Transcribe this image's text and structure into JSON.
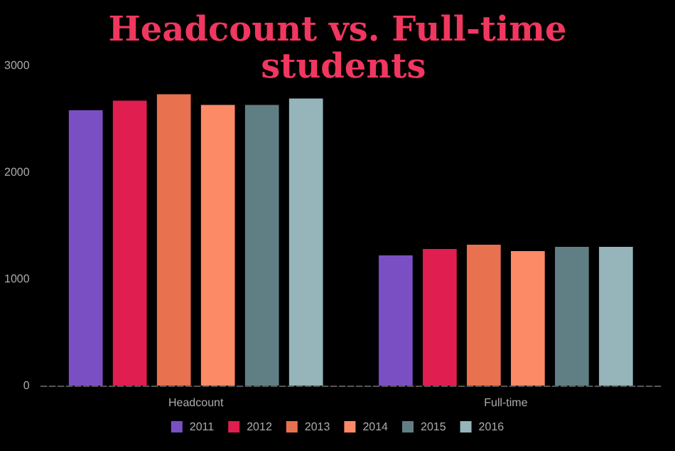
{
  "chart_data": {
    "type": "bar",
    "title": "Headcount vs. Full-time students",
    "categories": [
      "Headcount",
      "Full-time"
    ],
    "series": [
      {
        "name": "2011",
        "color": "#7b4fc4",
        "values": [
          2580,
          1220
        ]
      },
      {
        "name": "2012",
        "color": "#e01e4f",
        "values": [
          2670,
          1280
        ]
      },
      {
        "name": "2013",
        "color": "#e8714f",
        "values": [
          2730,
          1320
        ]
      },
      {
        "name": "2014",
        "color": "#fd8a66",
        "values": [
          2630,
          1260
        ]
      },
      {
        "name": "2015",
        "color": "#607f84",
        "values": [
          2630,
          1300
        ]
      },
      {
        "name": "2016",
        "color": "#95b5ba",
        "values": [
          2690,
          1300
        ]
      }
    ],
    "ylim": [
      0,
      3000
    ],
    "yticks": [
      0,
      1000,
      2000,
      3000
    ],
    "grid": false,
    "legend": "bottom"
  }
}
